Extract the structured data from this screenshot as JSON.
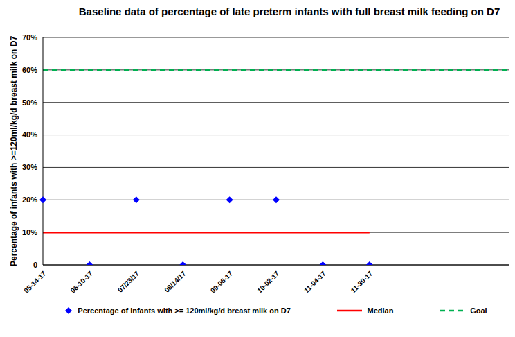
{
  "chart_data": {
    "type": "line",
    "title": "Baseline data of percentage of late preterm infants with full breast milk feeding on D7",
    "y_label": "Percentage of infants with >=120ml/kg/d breast milk on D7",
    "categories": [
      "05-14-17",
      "06-10-17",
      "07/23/17",
      "08/14/17",
      "09-06-17",
      "10-02-17",
      "11-04-17",
      "11-30-17",
      null,
      null,
      null
    ],
    "series": [
      {
        "name": "Percentage of infants with >= 120ml/kg/d breast milk on D7",
        "color": "#0000ff",
        "type": "scatter",
        "marker": "diamond",
        "line_style": "none",
        "values": [
          20,
          0,
          20,
          0,
          20,
          20,
          0,
          0,
          null,
          null,
          null
        ]
      },
      {
        "name": "Median",
        "color": "#ff0000",
        "type": "line",
        "marker": "none",
        "line_style": "solid",
        "values": [
          10,
          10,
          10,
          10,
          10,
          10,
          10,
          10,
          null,
          null,
          null
        ]
      },
      {
        "name": "Goal",
        "color": "#00b050",
        "type": "line",
        "marker": "none",
        "line_style": "dashed",
        "values": [
          60,
          60,
          60,
          60,
          60,
          60,
          60,
          60,
          60,
          60,
          60
        ]
      }
    ],
    "ylim": [
      0,
      70
    ],
    "yticks": [
      0,
      {
        "value": 10,
        "label": "10%"
      },
      {
        "value": 20,
        "label": "20%"
      },
      {
        "value": 30,
        "label": "30%"
      },
      {
        "value": 40,
        "label": "40%"
      },
      {
        "value": 50,
        "label": "50%"
      },
      {
        "value": 60,
        "label": "60%"
      },
      {
        "value": 70,
        "label": "70%"
      }
    ],
    "grid": true,
    "legend": "bottom"
  }
}
